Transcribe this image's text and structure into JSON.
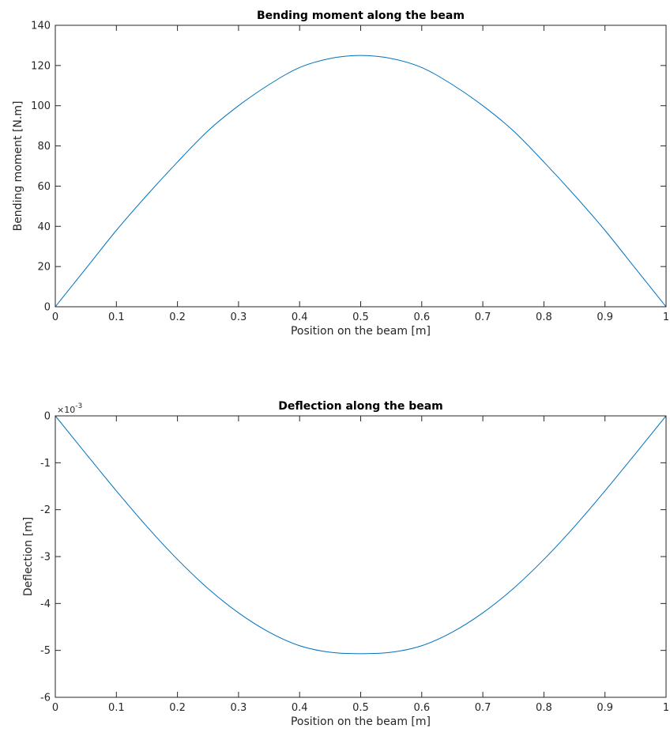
{
  "colors": {
    "line": "#0072BD",
    "axis": "#262626",
    "background": "#ffffff"
  },
  "chart_data": [
    {
      "type": "line",
      "title": "Bending moment along the beam",
      "xlabel": "Position on the beam [m]",
      "ylabel": "Bending moment [N.m]",
      "xlim": [
        0,
        1
      ],
      "ylim": [
        0,
        140
      ],
      "grid": false,
      "x_ticks": [
        "0",
        "0.1",
        "0.2",
        "0.3",
        "0.4",
        "0.5",
        "0.6",
        "0.7",
        "0.8",
        "0.9",
        "1"
      ],
      "y_ticks": [
        "0",
        "20",
        "40",
        "60",
        "80",
        "100",
        "120",
        "140"
      ],
      "y_exponent_label": "",
      "series": [
        {
          "x": [
            0,
            0.05,
            0.1,
            0.15,
            0.2,
            0.25,
            0.3,
            0.35,
            0.4,
            0.45,
            0.5,
            0.55,
            0.6,
            0.65,
            0.7,
            0.75,
            0.8,
            0.85,
            0.9,
            0.95,
            1
          ],
          "y": [
            0,
            19,
            38,
            55.5,
            72,
            87.5,
            100,
            110.5,
            119,
            123.5,
            125,
            123.5,
            119,
            110.5,
            100,
            87.5,
            72,
            55.5,
            38,
            19,
            0
          ]
        }
      ]
    },
    {
      "type": "line",
      "title": "Deflection along the beam",
      "xlabel": "Position on the beam [m]",
      "ylabel": "Deflection [m]",
      "xlim": [
        0,
        1
      ],
      "ylim": [
        -0.006,
        0
      ],
      "grid": false,
      "x_ticks": [
        "0",
        "0.1",
        "0.2",
        "0.3",
        "0.4",
        "0.5",
        "0.6",
        "0.7",
        "0.8",
        "0.9",
        "1"
      ],
      "y_ticks": [
        "-6",
        "-5",
        "-4",
        "-3",
        "-2",
        "-1",
        "0"
      ],
      "y_exponent_label": "×10",
      "y_exponent_power": "-3",
      "series": [
        {
          "x": [
            0,
            0.05,
            0.1,
            0.15,
            0.2,
            0.25,
            0.3,
            0.35,
            0.4,
            0.45,
            0.5,
            0.55,
            0.6,
            0.65,
            0.7,
            0.75,
            0.8,
            0.85,
            0.9,
            0.95,
            1
          ],
          "y": [
            0,
            -0.000805,
            -0.0016,
            -0.00236,
            -0.00306,
            -0.00368,
            -0.0042,
            -0.00461,
            -0.0049,
            -0.00504,
            -0.00507,
            -0.00504,
            -0.0049,
            -0.00461,
            -0.0042,
            -0.00368,
            -0.00306,
            -0.00236,
            -0.0016,
            -0.000805,
            0
          ]
        }
      ]
    }
  ]
}
